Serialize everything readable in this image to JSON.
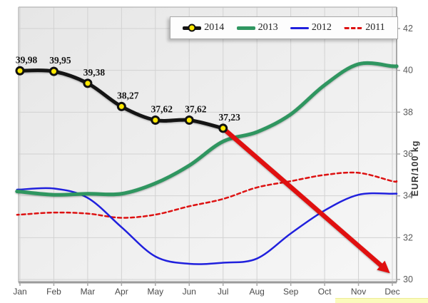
{
  "chart_data": {
    "type": "line",
    "x_categories": [
      "Jan",
      "Feb",
      "Mar",
      "Apr",
      "May",
      "Jun",
      "Jul",
      "Aug",
      "Sep",
      "Oct",
      "Nov",
      "Dec"
    ],
    "y_ticks": [
      42,
      40,
      38,
      36,
      34,
      32,
      30
    ],
    "y_tick_labels": [
      "42",
      "40",
      "38",
      "36",
      "34",
      "32",
      "30"
    ],
    "ylim": [
      30,
      42
    ],
    "ylabel": "EUR/100 kg",
    "grid": true,
    "legend_position": "top",
    "series": [
      {
        "name": "2014",
        "color": "#141414",
        "width": 5,
        "marker": "circle",
        "marker_color": "#ffe800",
        "values": [
          39.98,
          39.95,
          39.38,
          38.27,
          37.62,
          37.62,
          37.23
        ],
        "point_labels": [
          "39,98",
          "39,95",
          "39,38",
          "38,27",
          "37,62",
          "37,62",
          "37,23"
        ]
      },
      {
        "name": "2013",
        "color": "#2f9660",
        "width": 5,
        "values": [
          34.2,
          34.05,
          34.1,
          34.1,
          34.6,
          35.45,
          36.6,
          37.05,
          37.9,
          39.3,
          40.3,
          40.2
        ]
      },
      {
        "name": "2012",
        "color": "#2020dd",
        "width": 2.5,
        "values": [
          34.3,
          34.35,
          33.9,
          32.5,
          31.1,
          30.75,
          30.8,
          31.0,
          32.2,
          33.3,
          34.05,
          34.1
        ]
      },
      {
        "name": "2011",
        "color": "#dd1111",
        "width": 2.5,
        "dash": "5,4",
        "values": [
          33.1,
          33.2,
          33.15,
          32.95,
          33.1,
          33.5,
          33.85,
          34.4,
          34.7,
          35.0,
          35.1,
          34.7
        ]
      }
    ],
    "annotation_arrow": {
      "color": "#e01010",
      "from": {
        "month_index": 6,
        "value": 37.23
      },
      "to": {
        "month_index": 10.93,
        "value": 30.3
      }
    },
    "highlight_strip_color": "#fbfbbc"
  }
}
